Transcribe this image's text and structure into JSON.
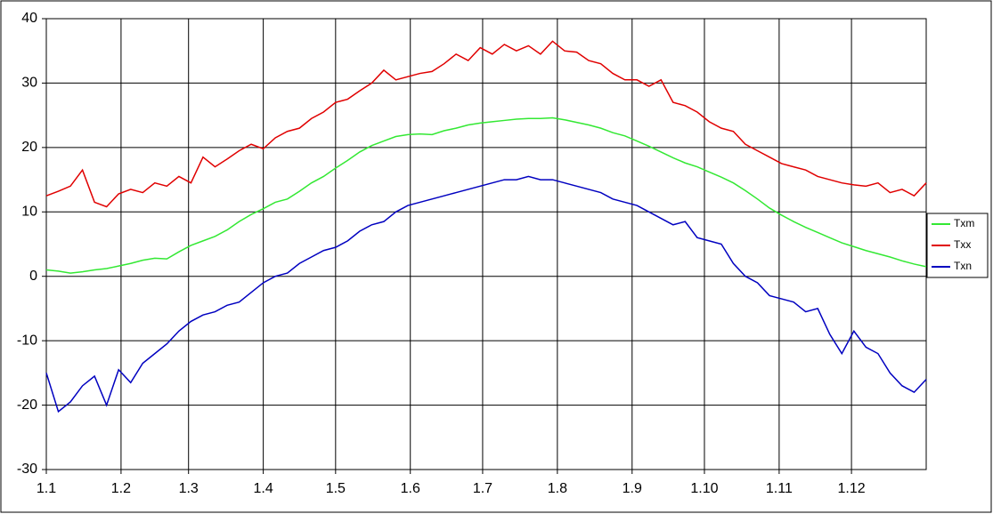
{
  "chart_data": {
    "type": "line",
    "x": [
      0,
      5,
      10,
      15,
      20,
      25,
      30,
      35,
      40,
      45,
      50,
      55,
      60,
      65,
      70,
      75,
      80,
      85,
      90,
      95,
      100,
      105,
      110,
      115,
      120,
      125,
      130,
      135,
      140,
      145,
      150,
      155,
      160,
      165,
      170,
      175,
      180,
      185,
      190,
      195,
      200,
      205,
      210,
      215,
      220,
      225,
      230,
      235,
      240,
      245,
      250,
      255,
      260,
      265,
      270,
      275,
      280,
      285,
      290,
      295,
      300,
      305,
      310,
      315,
      320,
      325,
      330,
      335,
      340,
      345,
      350,
      355,
      360,
      365
    ],
    "series": [
      {
        "name": "Txm",
        "color": "#33e833",
        "values": [
          1.0,
          0.8,
          0.5,
          0.7,
          1.0,
          1.2,
          1.6,
          2.0,
          2.5,
          2.8,
          2.7,
          3.8,
          4.8,
          5.5,
          6.2,
          7.2,
          8.5,
          9.6,
          10.5,
          11.5,
          12.0,
          13.2,
          14.5,
          15.5,
          16.8,
          18.0,
          19.3,
          20.3,
          21.0,
          21.7,
          22.0,
          22.1,
          22.0,
          22.6,
          23.0,
          23.5,
          23.8,
          24.0,
          24.2,
          24.4,
          24.5,
          24.5,
          24.6,
          24.3,
          23.9,
          23.5,
          23.0,
          22.3,
          21.8,
          21.0,
          20.2,
          19.3,
          18.4,
          17.6,
          17.0,
          16.2,
          15.4,
          14.5,
          13.3,
          12.0,
          10.6,
          9.5,
          8.5,
          7.6,
          6.8,
          6.0,
          5.2,
          4.6,
          4.0,
          3.5,
          3.0,
          2.4,
          1.9,
          1.5
        ]
      },
      {
        "name": "Txx",
        "color": "#e00000",
        "values": [
          12.5,
          13.2,
          14.0,
          16.5,
          11.5,
          10.8,
          12.8,
          13.5,
          13.0,
          14.5,
          14.0,
          15.5,
          14.5,
          18.5,
          17.0,
          18.2,
          19.5,
          20.5,
          19.8,
          21.5,
          22.5,
          23.0,
          24.5,
          25.5,
          27.0,
          27.5,
          28.8,
          30.0,
          32.0,
          30.5,
          31.0,
          31.5,
          31.8,
          33.0,
          34.5,
          33.5,
          35.5,
          34.5,
          36.0,
          35.0,
          35.8,
          34.5,
          36.5,
          35.0,
          34.8,
          33.5,
          33.0,
          31.5,
          30.5,
          30.5,
          29.5,
          30.5,
          27.0,
          26.5,
          25.5,
          24.0,
          23.0,
          22.5,
          20.5,
          19.5,
          18.5,
          17.5,
          17.0,
          16.5,
          15.5,
          15.0,
          14.5,
          14.2,
          14.0,
          14.5,
          13.0,
          13.5,
          12.5,
          14.5
        ]
      },
      {
        "name": "Txn",
        "color": "#0000c0",
        "values": [
          -15,
          -21,
          -19.5,
          -17,
          -15.5,
          -20,
          -14.5,
          -16.5,
          -13.5,
          -12,
          -10.5,
          -8.5,
          -7,
          -6,
          -5.5,
          -4.5,
          -4,
          -2.5,
          -1,
          0,
          0.5,
          2,
          3,
          4,
          4.5,
          5.5,
          7,
          8,
          8.5,
          10,
          11,
          11.5,
          12,
          12.5,
          13,
          13.5,
          14,
          14.5,
          15,
          15,
          15.5,
          15,
          15,
          14.5,
          14,
          13.5,
          13,
          12,
          11.5,
          11,
          10,
          9,
          8,
          8.5,
          6,
          5.5,
          5,
          2,
          0,
          -1,
          -3,
          -3.5,
          -4,
          -5.5,
          -5,
          -9,
          -12,
          -8.5,
          -11,
          -12,
          -15,
          -17,
          -18,
          -16
        ]
      }
    ],
    "xlim": [
      0,
      365
    ],
    "xticks": [
      {
        "value": 0,
        "label": "1.1"
      },
      {
        "value": 31,
        "label": "1.2"
      },
      {
        "value": 59,
        "label": "1.3"
      },
      {
        "value": 90,
        "label": "1.4"
      },
      {
        "value": 120,
        "label": "1.5"
      },
      {
        "value": 151,
        "label": "1.6"
      },
      {
        "value": 181,
        "label": "1.7"
      },
      {
        "value": 212,
        "label": "1.8"
      },
      {
        "value": 243,
        "label": "1.9"
      },
      {
        "value": 273,
        "label": "1.10"
      },
      {
        "value": 304,
        "label": "1.11"
      },
      {
        "value": 334,
        "label": "1.12"
      }
    ],
    "ylim": [
      -30,
      40
    ],
    "yticks": [
      -30,
      -20,
      -10,
      0,
      10,
      20,
      30,
      40
    ],
    "grid": true,
    "legend": "right"
  }
}
